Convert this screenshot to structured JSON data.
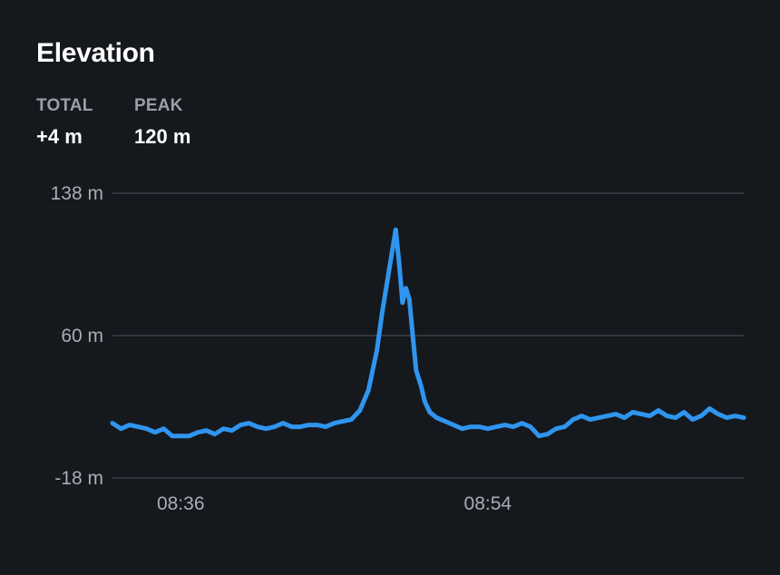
{
  "card": {
    "title": "Elevation",
    "stats": [
      {
        "label": "TOTAL",
        "value": "+4 m"
      },
      {
        "label": "PEAK",
        "value": "120 m"
      }
    ]
  },
  "colors": {
    "background": "#15181d",
    "line": "#2f95ee",
    "grid": "#3d4147",
    "tick_text": "#a9adb3",
    "stat_label": "#9a9ea5"
  },
  "chart_data": {
    "type": "line",
    "title": "Elevation",
    "xlabel": "",
    "ylabel": "",
    "ylim": [
      -18,
      138
    ],
    "yticks": [
      {
        "value": 138,
        "label": "138 m"
      },
      {
        "value": 60,
        "label": "60 m"
      },
      {
        "value": -18,
        "label": "-18 m"
      }
    ],
    "xticks": [
      {
        "value": 4,
        "label": "08:36"
      },
      {
        "value": 22,
        "label": "08:54"
      }
    ],
    "grid": true,
    "legend": "none",
    "series": [
      {
        "x": [
          0,
          0.5,
          1,
          1.5,
          2,
          2.5,
          3,
          3.5,
          4,
          4.5,
          5,
          5.5,
          6,
          6.5,
          7,
          7.5,
          8,
          8.5,
          9,
          9.5,
          10,
          10.5,
          11,
          11.5,
          12,
          12.5,
          13,
          13.5,
          14,
          14.5,
          15,
          15.5,
          15.8,
          16.2,
          16.6,
          16.8,
          17,
          17.2,
          17.4,
          17.6,
          17.8,
          18.1,
          18.3,
          18.6,
          19,
          19.5,
          20,
          20.5,
          21,
          21.5,
          22,
          22.5,
          23,
          23.5,
          24,
          24.5,
          25,
          25.5,
          26,
          26.5,
          27,
          27.5,
          28,
          28.5,
          29,
          29.5,
          30,
          30.5,
          31,
          31.5,
          32,
          32.5,
          33,
          33.5,
          34,
          34.5,
          35,
          35.5,
          36,
          36.5,
          37
        ],
        "y": [
          12,
          9,
          11,
          10,
          9,
          7,
          9,
          5,
          5,
          5,
          7,
          8,
          6,
          9,
          8,
          11,
          12,
          10,
          9,
          10,
          12,
          10,
          10,
          11,
          11,
          10,
          12,
          13,
          14,
          19,
          30,
          52,
          72,
          95,
          118,
          100,
          78,
          86,
          80,
          60,
          41,
          32,
          24,
          18,
          15,
          13,
          11,
          9,
          10,
          10,
          9,
          10,
          11,
          10,
          12,
          10,
          5,
          6,
          9,
          10,
          14,
          16,
          14,
          15,
          16,
          17,
          15,
          18,
          17,
          16,
          19,
          16,
          15,
          18,
          14,
          16,
          20,
          17,
          15,
          16,
          15
        ]
      }
    ]
  }
}
